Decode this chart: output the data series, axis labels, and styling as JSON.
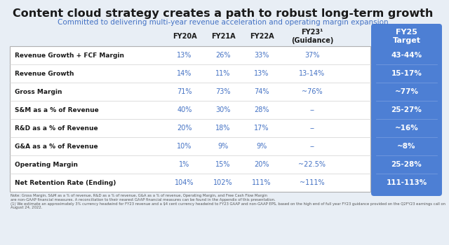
{
  "title": "Content cloud strategy creates a path to robust long-term growth",
  "subtitle": "Committed to delivering multi-year revenue acceleration and operating margin expansion",
  "title_color": "#1a1a1a",
  "subtitle_color": "#4472c4",
  "col_headers": [
    "FY20A",
    "FY21A",
    "FY22A",
    "FY23¹\n(Guidance)",
    "FY25\nTarget"
  ],
  "row_labels": [
    "Revenue Growth + FCF Margin",
    "Revenue Growth",
    "Gross Margin",
    "S&M as a % of Revenue",
    "R&D as a % of Revenue",
    "G&A as a % of Revenue",
    "Operating Margin",
    "Net Retention Rate (Ending)"
  ],
  "table_data": [
    [
      "13%",
      "26%",
      "33%",
      "37%",
      "43-44%"
    ],
    [
      "14%",
      "11%",
      "13%",
      "13-14%",
      "15-17%"
    ],
    [
      "71%",
      "73%",
      "74%",
      "~76%",
      "~77%"
    ],
    [
      "40%",
      "30%",
      "28%",
      "--",
      "25-27%"
    ],
    [
      "20%",
      "18%",
      "17%",
      "--",
      "~16%"
    ],
    [
      "10%",
      "9%",
      "9%",
      "--",
      "~8%"
    ],
    [
      "1%",
      "15%",
      "20%",
      "~22.5%",
      "25-28%"
    ],
    [
      "104%",
      "102%",
      "111%",
      "~111%",
      "111-113%"
    ]
  ],
  "data_color": "#4472c4",
  "fy25_bg_color": "#4d7fd4",
  "fy25_text_color": "#ffffff",
  "table_bg": "#ffffff",
  "row_border_color": "#d0d0d0",
  "table_border_color": "#b0b0b0",
  "row_label_color": "#1a1a1a",
  "note_text": "Note: Gross Margin, S&M as a % of revenue, R&D as a % of revenue, G&A as a % of revenue, Operating Margin, and Free Cash Flow Margin\nare non-GAAP financial measures. A reconciliation to their nearest GAAP financial measures can be found in the Appendix of this presentation.\n(1) We estimate an approximately 3% currency headwind for FY23 revenue and a $4 cent currency headwind to FY23 GAAP and non-GAAP EPS, based on the high end of full year FY23 guidance provided on the Q2FY23 earnings call on August 24, 2022.",
  "bg_color": "#e8eef5"
}
